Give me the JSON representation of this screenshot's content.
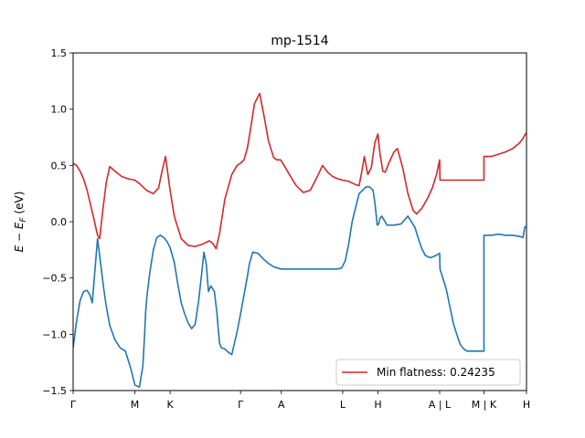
{
  "chart_data": {
    "type": "line",
    "title": "mp-1514",
    "xlabel": "",
    "ylabel": "E − E_F (eV)",
    "ylabel_parts": {
      "main": "E − E",
      "sub": "F",
      "unit": " (eV)"
    },
    "xlim": [
      0,
      13.0
    ],
    "ylim": [
      -1.5,
      1.5
    ],
    "yticks": [
      -1.5,
      -1.0,
      -0.5,
      0.0,
      0.5,
      1.0,
      1.5
    ],
    "ytick_labels": [
      "−1.5",
      "−1.0",
      "−0.5",
      "0.0",
      "0.5",
      "1.0",
      "1.5"
    ],
    "xticks": [
      {
        "label": "Γ",
        "x": 0.0
      },
      {
        "label": "M",
        "x": 1.77
      },
      {
        "label": "K",
        "x": 2.78
      },
      {
        "label": "Γ",
        "x": 4.8
      },
      {
        "label": "A",
        "x": 5.97
      },
      {
        "label": "L",
        "x": 7.73
      },
      {
        "label": "H",
        "x": 8.74
      },
      {
        "label": "A | L",
        "x": 10.51
      },
      {
        "label": "M | K",
        "x": 11.78
      },
      {
        "label": "H",
        "x": 13.0
      }
    ],
    "grid": false,
    "legend": {
      "position": "lower-right",
      "entries": [
        "Min flatness: 0.24235"
      ]
    },
    "series": [
      {
        "name": "",
        "color": "#1f77b4",
        "x": [
          0.0,
          0.1,
          0.2,
          0.3,
          0.4,
          0.48,
          0.55,
          0.62,
          0.7,
          0.76,
          0.8,
          0.88,
          0.95,
          1.05,
          1.2,
          1.35,
          1.5,
          1.65,
          1.77,
          1.9,
          2.0,
          2.05,
          2.08,
          2.12,
          2.2,
          2.3,
          2.4,
          2.5,
          2.6,
          2.7,
          2.78,
          2.9,
          3.0,
          3.1,
          3.2,
          3.3,
          3.4,
          3.5,
          3.6,
          3.7,
          3.75,
          3.82,
          3.88,
          3.95,
          4.05,
          4.12,
          4.16,
          4.2,
          4.25,
          4.35,
          4.45,
          4.55,
          4.7,
          4.8,
          4.9,
          5.0,
          5.05,
          5.15,
          5.3,
          5.45,
          5.6,
          5.75,
          5.85,
          5.95,
          6.05,
          6.2,
          6.4,
          6.6,
          6.8,
          7.0,
          7.2,
          7.35,
          7.5,
          7.6,
          7.7,
          7.8,
          7.9,
          8.0,
          8.2,
          8.4,
          8.5,
          8.6,
          8.66,
          8.72,
          8.76,
          8.8,
          8.85,
          9.0,
          9.2,
          9.4,
          9.6,
          9.8,
          9.9,
          10.0,
          10.1,
          10.25,
          10.4,
          10.51,
          10.52,
          10.6,
          10.7,
          10.8,
          10.9,
          11.0,
          11.1,
          11.2,
          11.3,
          11.5,
          11.7,
          11.78,
          11.78,
          12.0,
          12.2,
          12.4,
          12.6,
          12.8,
          12.9,
          12.95,
          13.0
        ],
        "y": [
          -1.12,
          -0.88,
          -0.7,
          -0.62,
          -0.61,
          -0.65,
          -0.72,
          -0.45,
          -0.15,
          -0.3,
          -0.4,
          -0.6,
          -0.75,
          -0.92,
          -1.05,
          -1.12,
          -1.15,
          -1.3,
          -1.45,
          -1.47,
          -1.28,
          -1.0,
          -0.8,
          -0.65,
          -0.45,
          -0.25,
          -0.14,
          -0.12,
          -0.14,
          -0.18,
          -0.23,
          -0.36,
          -0.55,
          -0.72,
          -0.82,
          -0.9,
          -0.95,
          -0.91,
          -0.7,
          -0.42,
          -0.27,
          -0.38,
          -0.62,
          -0.57,
          -0.62,
          -0.8,
          -0.95,
          -1.08,
          -1.12,
          -1.13,
          -1.16,
          -1.18,
          -0.98,
          -0.82,
          -0.65,
          -0.48,
          -0.38,
          -0.27,
          -0.28,
          -0.33,
          -0.37,
          -0.4,
          -0.41,
          -0.42,
          -0.42,
          -0.42,
          -0.42,
          -0.42,
          -0.42,
          -0.42,
          -0.42,
          -0.42,
          -0.42,
          -0.42,
          -0.41,
          -0.35,
          -0.2,
          0.0,
          0.25,
          0.31,
          0.31,
          0.28,
          0.15,
          -0.03,
          -0.02,
          0.03,
          0.05,
          -0.03,
          -0.03,
          -0.02,
          0.05,
          -0.05,
          -0.15,
          -0.24,
          -0.3,
          -0.32,
          -0.3,
          -0.28,
          -0.42,
          -0.5,
          -0.6,
          -0.75,
          -0.9,
          -1.0,
          -1.09,
          -1.13,
          -1.15,
          -1.15,
          -1.15,
          -1.15,
          -0.12,
          -0.12,
          -0.11,
          -0.12,
          -0.12,
          -0.13,
          -0.14,
          -0.05,
          -0.04
        ]
      },
      {
        "name": "Min flatness: 0.24235",
        "color": "#d62728",
        "x": [
          0.0,
          0.1,
          0.2,
          0.3,
          0.4,
          0.5,
          0.6,
          0.7,
          0.76,
          0.85,
          0.95,
          1.05,
          1.2,
          1.4,
          1.6,
          1.77,
          1.9,
          2.1,
          2.3,
          2.45,
          2.55,
          2.65,
          2.78,
          2.9,
          3.1,
          3.3,
          3.5,
          3.7,
          3.9,
          4.0,
          4.1,
          4.2,
          4.35,
          4.55,
          4.7,
          4.8,
          4.9,
          5.0,
          5.1,
          5.2,
          5.35,
          5.48,
          5.6,
          5.75,
          5.85,
          5.95,
          6.05,
          6.2,
          6.4,
          6.6,
          6.8,
          7.0,
          7.15,
          7.3,
          7.45,
          7.6,
          7.73,
          7.9,
          8.1,
          8.2,
          8.28,
          8.35,
          8.45,
          8.55,
          8.65,
          8.74,
          8.8,
          8.88,
          8.95,
          9.05,
          9.2,
          9.3,
          9.45,
          9.6,
          9.75,
          9.85,
          10.0,
          10.15,
          10.3,
          10.42,
          10.51,
          10.52,
          10.7,
          10.9,
          11.1,
          11.3,
          11.5,
          11.7,
          11.78,
          11.78,
          12.0,
          12.2,
          12.4,
          12.6,
          12.8,
          12.9,
          12.95,
          13.0
        ],
        "y": [
          0.52,
          0.5,
          0.45,
          0.38,
          0.28,
          0.15,
          0.02,
          -0.12,
          -0.15,
          0.1,
          0.35,
          0.49,
          0.45,
          0.4,
          0.38,
          0.37,
          0.34,
          0.28,
          0.25,
          0.3,
          0.45,
          0.58,
          0.28,
          0.05,
          -0.15,
          -0.21,
          -0.22,
          -0.2,
          -0.17,
          -0.19,
          -0.24,
          -0.1,
          0.2,
          0.42,
          0.5,
          0.52,
          0.55,
          0.66,
          0.85,
          1.05,
          1.14,
          0.93,
          0.72,
          0.57,
          0.55,
          0.55,
          0.5,
          0.42,
          0.32,
          0.26,
          0.28,
          0.4,
          0.5,
          0.44,
          0.4,
          0.38,
          0.37,
          0.36,
          0.33,
          0.32,
          0.45,
          0.58,
          0.42,
          0.48,
          0.7,
          0.78,
          0.6,
          0.45,
          0.44,
          0.52,
          0.62,
          0.65,
          0.48,
          0.25,
          0.1,
          0.07,
          0.12,
          0.2,
          0.3,
          0.42,
          0.55,
          0.37,
          0.37,
          0.37,
          0.37,
          0.37,
          0.37,
          0.37,
          0.37,
          0.58,
          0.58,
          0.6,
          0.62,
          0.65,
          0.7,
          0.74,
          0.77,
          0.79
        ]
      }
    ]
  }
}
